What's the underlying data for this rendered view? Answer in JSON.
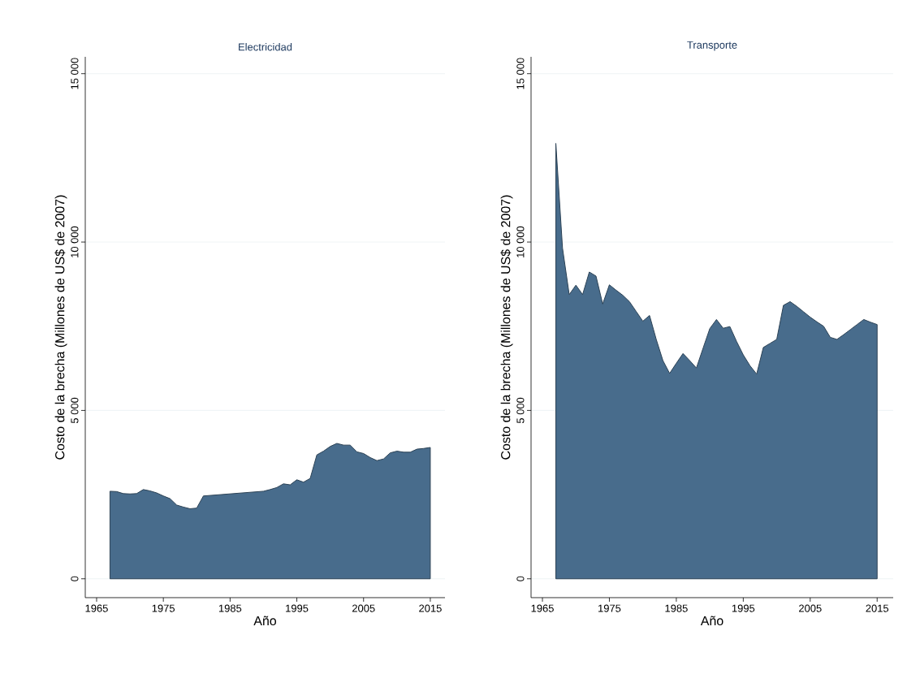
{
  "chart_data": [
    {
      "type": "area",
      "title": "Electricidad",
      "xlabel": "Año",
      "ylabel": "Costo de la brecha (Millones de US$ de 2007)",
      "color": "#486c8c",
      "grid": "y",
      "x": [
        1967,
        1968,
        1969,
        1970,
        1971,
        1972,
        1973,
        1974,
        1975,
        1976,
        1977,
        1978,
        1979,
        1980,
        1981,
        1990,
        1991,
        1992,
        1993,
        1994,
        1995,
        1996,
        1997,
        1998,
        1999,
        2000,
        2001,
        2002,
        2003,
        2004,
        2005,
        2006,
        2007,
        2008,
        2009,
        2010,
        2011,
        2012,
        2013,
        2014,
        2015
      ],
      "values": [
        2600,
        2590,
        2530,
        2520,
        2530,
        2650,
        2610,
        2550,
        2460,
        2380,
        2190,
        2130,
        2080,
        2100,
        2460,
        2600,
        2650,
        2710,
        2820,
        2790,
        2940,
        2870,
        2980,
        3680,
        3790,
        3930,
        4020,
        3970,
        3970,
        3770,
        3720,
        3600,
        3510,
        3560,
        3740,
        3790,
        3760,
        3760,
        3850,
        3870,
        3900
      ],
      "xlim": [
        1963.3,
        2017.2
      ],
      "ylim": [
        -560,
        15500
      ],
      "xticks": [
        1965,
        1975,
        1985,
        1995,
        2005,
        2015
      ],
      "yticks": [
        {
          "value": 0,
          "label": "0"
        },
        {
          "value": 5000,
          "label": "5 000"
        },
        {
          "value": 10000,
          "label": "10 000"
        },
        {
          "value": 15000,
          "label": "15 000"
        }
      ]
    },
    {
      "type": "area",
      "title": "Transporte",
      "xlabel": "Año",
      "ylabel": "Costo de la brecha (Millones de US$ de 2007)",
      "color": "#486c8c",
      "grid": "y",
      "x": [
        1967,
        1968,
        1969,
        1970,
        1971,
        1972,
        1973,
        1974,
        1975,
        1976,
        1977,
        1978,
        1979,
        1980,
        1981,
        1982,
        1983,
        1984,
        1985,
        1986,
        1987,
        1988,
        1989,
        1990,
        1991,
        1992,
        1993,
        1994,
        1995,
        1996,
        1997,
        1998,
        1999,
        2000,
        2001,
        2002,
        2003,
        2004,
        2005,
        2006,
        2007,
        2008,
        2009,
        2010,
        2011,
        2012,
        2013,
        2014,
        2015
      ],
      "values": [
        12930,
        9820,
        8440,
        8720,
        8440,
        9110,
        8990,
        8160,
        8730,
        8570,
        8420,
        8230,
        7940,
        7650,
        7820,
        7110,
        6480,
        6100,
        6400,
        6690,
        6480,
        6260,
        6850,
        7430,
        7700,
        7440,
        7490,
        7050,
        6650,
        6330,
        6080,
        6870,
        6990,
        7110,
        8120,
        8230,
        8090,
        7930,
        7770,
        7630,
        7500,
        7170,
        7110,
        7250,
        7400,
        7550,
        7700,
        7620,
        7550
      ],
      "xlim": [
        1963.3,
        2017.4
      ],
      "ylim": [
        -560,
        15500
      ],
      "xticks": [
        1965,
        1975,
        1985,
        1995,
        2005,
        2015
      ],
      "yticks": [
        {
          "value": 0,
          "label": "0"
        },
        {
          "value": 5000,
          "label": "5 000"
        },
        {
          "value": 10000,
          "label": "10 000"
        },
        {
          "value": 15000,
          "label": "15 000"
        }
      ]
    }
  ]
}
